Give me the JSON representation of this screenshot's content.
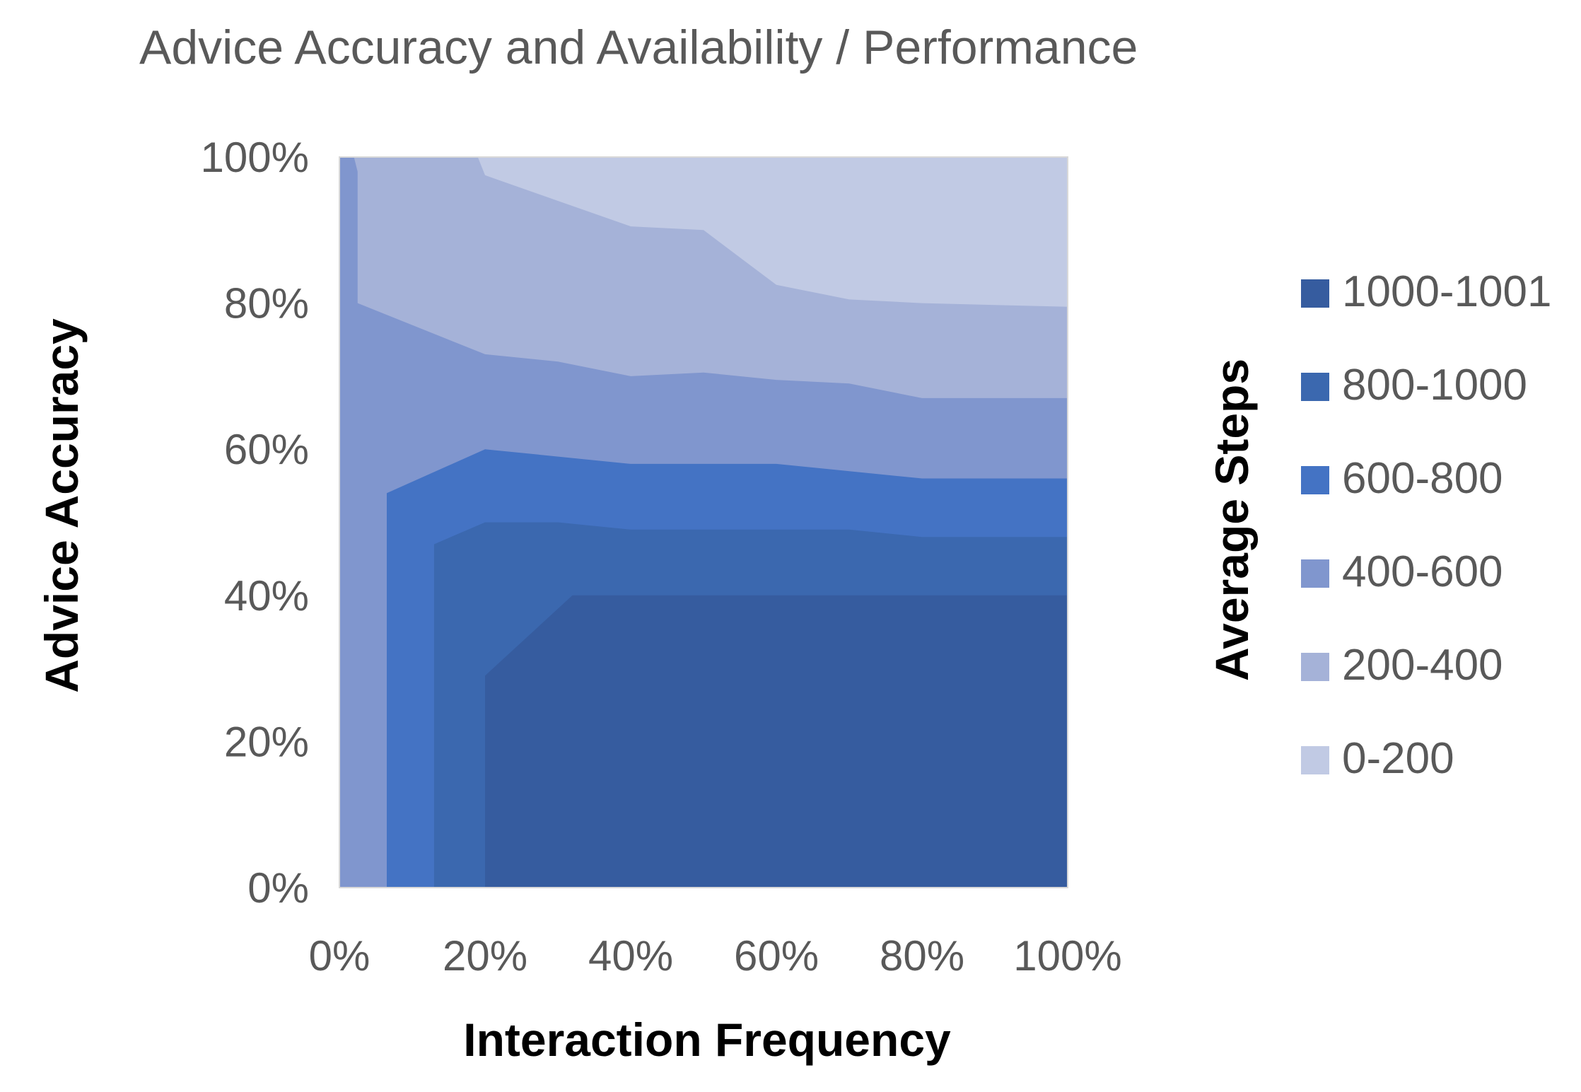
{
  "chart_data": {
    "type": "area",
    "subtype": "filled-contour",
    "title": "Advice Accuracy and Availability / Performance",
    "xlabel": "Interaction Frequency",
    "ylabel": "Advice Accuracy",
    "legend_title": "Average Steps",
    "legend_position": "right",
    "grid": false,
    "xlim": [
      0,
      100
    ],
    "ylim": [
      0,
      100
    ],
    "x_ticks": [
      "0%",
      "20%",
      "40%",
      "60%",
      "80%",
      "100%"
    ],
    "y_ticks": [
      "0%",
      "20%",
      "40%",
      "60%",
      "80%",
      "100%"
    ],
    "bands": [
      {
        "name": "1000-1001",
        "color": "#365c9f",
        "boundary": [
          {
            "x": 20,
            "y": 0
          },
          {
            "x": 20,
            "y": 29
          },
          {
            "x": 32,
            "y": 40
          },
          {
            "x": 100,
            "y": 40
          },
          {
            "x": 100,
            "y": 0
          }
        ]
      },
      {
        "name": "800-1000",
        "color": "#3b68af",
        "boundary": [
          {
            "x": 13,
            "y": 0
          },
          {
            "x": 13,
            "y": 47
          },
          {
            "x": 20,
            "y": 50
          },
          {
            "x": 30,
            "y": 50
          },
          {
            "x": 40,
            "y": 49
          },
          {
            "x": 60,
            "y": 49
          },
          {
            "x": 70,
            "y": 49
          },
          {
            "x": 80,
            "y": 48
          },
          {
            "x": 100,
            "y": 48
          },
          {
            "x": 100,
            "y": 0
          }
        ]
      },
      {
        "name": "600-800",
        "color": "#4473c4",
        "boundary": [
          {
            "x": 6.5,
            "y": 0
          },
          {
            "x": 6.5,
            "y": 54
          },
          {
            "x": 20,
            "y": 60
          },
          {
            "x": 40,
            "y": 58
          },
          {
            "x": 60,
            "y": 58
          },
          {
            "x": 80,
            "y": 56
          },
          {
            "x": 100,
            "y": 56
          },
          {
            "x": 100,
            "y": 0
          }
        ]
      },
      {
        "name": "400-600",
        "color": "#8096ce",
        "boundary": [
          {
            "x": 0,
            "y": 0
          },
          {
            "x": 0,
            "y": 100
          },
          {
            "x": 2,
            "y": 100
          },
          {
            "x": 2.5,
            "y": 98
          },
          {
            "x": 2.5,
            "y": 80
          },
          {
            "x": 20,
            "y": 73
          },
          {
            "x": 30,
            "y": 72
          },
          {
            "x": 40,
            "y": 70
          },
          {
            "x": 50,
            "y": 70.5
          },
          {
            "x": 60,
            "y": 69.5
          },
          {
            "x": 70,
            "y": 69
          },
          {
            "x": 80,
            "y": 67
          },
          {
            "x": 100,
            "y": 67
          },
          {
            "x": 100,
            "y": 0
          }
        ]
      },
      {
        "name": "200-400",
        "color": "#a5b2d8",
        "boundary": [
          {
            "x": 0,
            "y": 0
          },
          {
            "x": 0,
            "y": 100
          },
          {
            "x": 19,
            "y": 100
          },
          {
            "x": 20,
            "y": 97.5
          },
          {
            "x": 30,
            "y": 94
          },
          {
            "x": 40,
            "y": 90.5
          },
          {
            "x": 50,
            "y": 90
          },
          {
            "x": 60,
            "y": 82.5
          },
          {
            "x": 70,
            "y": 80.5
          },
          {
            "x": 80,
            "y": 80
          },
          {
            "x": 100,
            "y": 79.5
          },
          {
            "x": 100,
            "y": 0
          }
        ]
      },
      {
        "name": "0-200",
        "color": "#c1cae4",
        "boundary": [
          {
            "x": 0,
            "y": 0
          },
          {
            "x": 0,
            "y": 100
          },
          {
            "x": 100,
            "y": 100
          },
          {
            "x": 100,
            "y": 0
          }
        ]
      }
    ]
  },
  "legend_order": [
    "1000-1001",
    "800-1000",
    "600-800",
    "400-600",
    "200-400",
    "0-200"
  ]
}
